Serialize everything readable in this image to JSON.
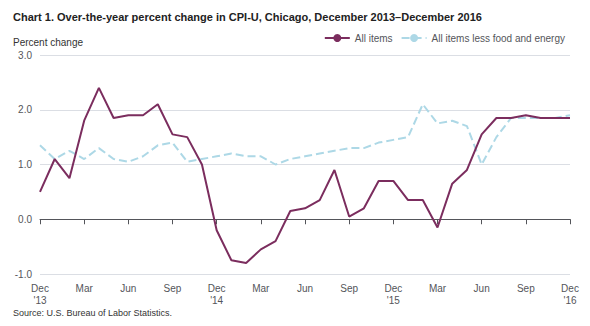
{
  "chart_data": {
    "type": "line",
    "title": "Chart 1. Over-the-year percent change in CPI-U, Chicago, December 2013–December 2016",
    "ylabel": "Percent change",
    "source": "Source: U.S. Bureau of Labor Statistics.",
    "categories": [
      "Dec\n'13",
      null,
      null,
      "Mar",
      null,
      null,
      "Jun",
      null,
      null,
      "Sep",
      null,
      null,
      "Dec\n'14",
      null,
      null,
      "Mar",
      null,
      null,
      "Jun",
      null,
      null,
      "Sep",
      null,
      null,
      "Dec\n'15",
      null,
      null,
      "Mar",
      null,
      null,
      "Jun",
      null,
      null,
      "Sep",
      null,
      null,
      "Dec\n'16"
    ],
    "series": [
      {
        "name": "All items",
        "color": "#7B2D5E",
        "line_style": "solid",
        "values": [
          0.5,
          1.1,
          0.75,
          1.8,
          2.4,
          1.85,
          1.9,
          1.9,
          2.1,
          1.55,
          1.5,
          1.0,
          -0.2,
          -0.75,
          -0.8,
          -0.55,
          -0.4,
          0.15,
          0.2,
          0.35,
          0.9,
          0.05,
          0.2,
          0.7,
          0.7,
          0.35,
          0.35,
          -0.15,
          0.65,
          0.9,
          1.55,
          1.85,
          1.85,
          1.9,
          1.85,
          1.85,
          1.85
        ]
      },
      {
        "name": "All items less food and energy",
        "color": "#ADD8E6",
        "line_style": "dashed",
        "values": [
          1.35,
          1.1,
          1.25,
          1.1,
          1.3,
          1.1,
          1.05,
          1.15,
          1.35,
          1.4,
          1.05,
          1.1,
          1.15,
          1.2,
          1.15,
          1.15,
          1.0,
          1.1,
          1.15,
          1.2,
          1.25,
          1.3,
          1.3,
          1.4,
          1.45,
          1.5,
          2.1,
          1.75,
          1.8,
          1.7,
          1.0,
          1.5,
          1.85,
          1.85,
          1.85,
          1.85,
          1.9
        ]
      }
    ],
    "ylim": [
      -1.0,
      3.0
    ],
    "yticks": [
      {
        "value": -1.0,
        "label": "-1.0"
      },
      {
        "value": 0.0,
        "label": "0.0"
      },
      {
        "value": 1.0,
        "label": "1.0"
      },
      {
        "value": 2.0,
        "label": "2.0"
      },
      {
        "value": 3.0,
        "label": "3.0"
      }
    ],
    "grid": true,
    "legend": "upper right"
  }
}
